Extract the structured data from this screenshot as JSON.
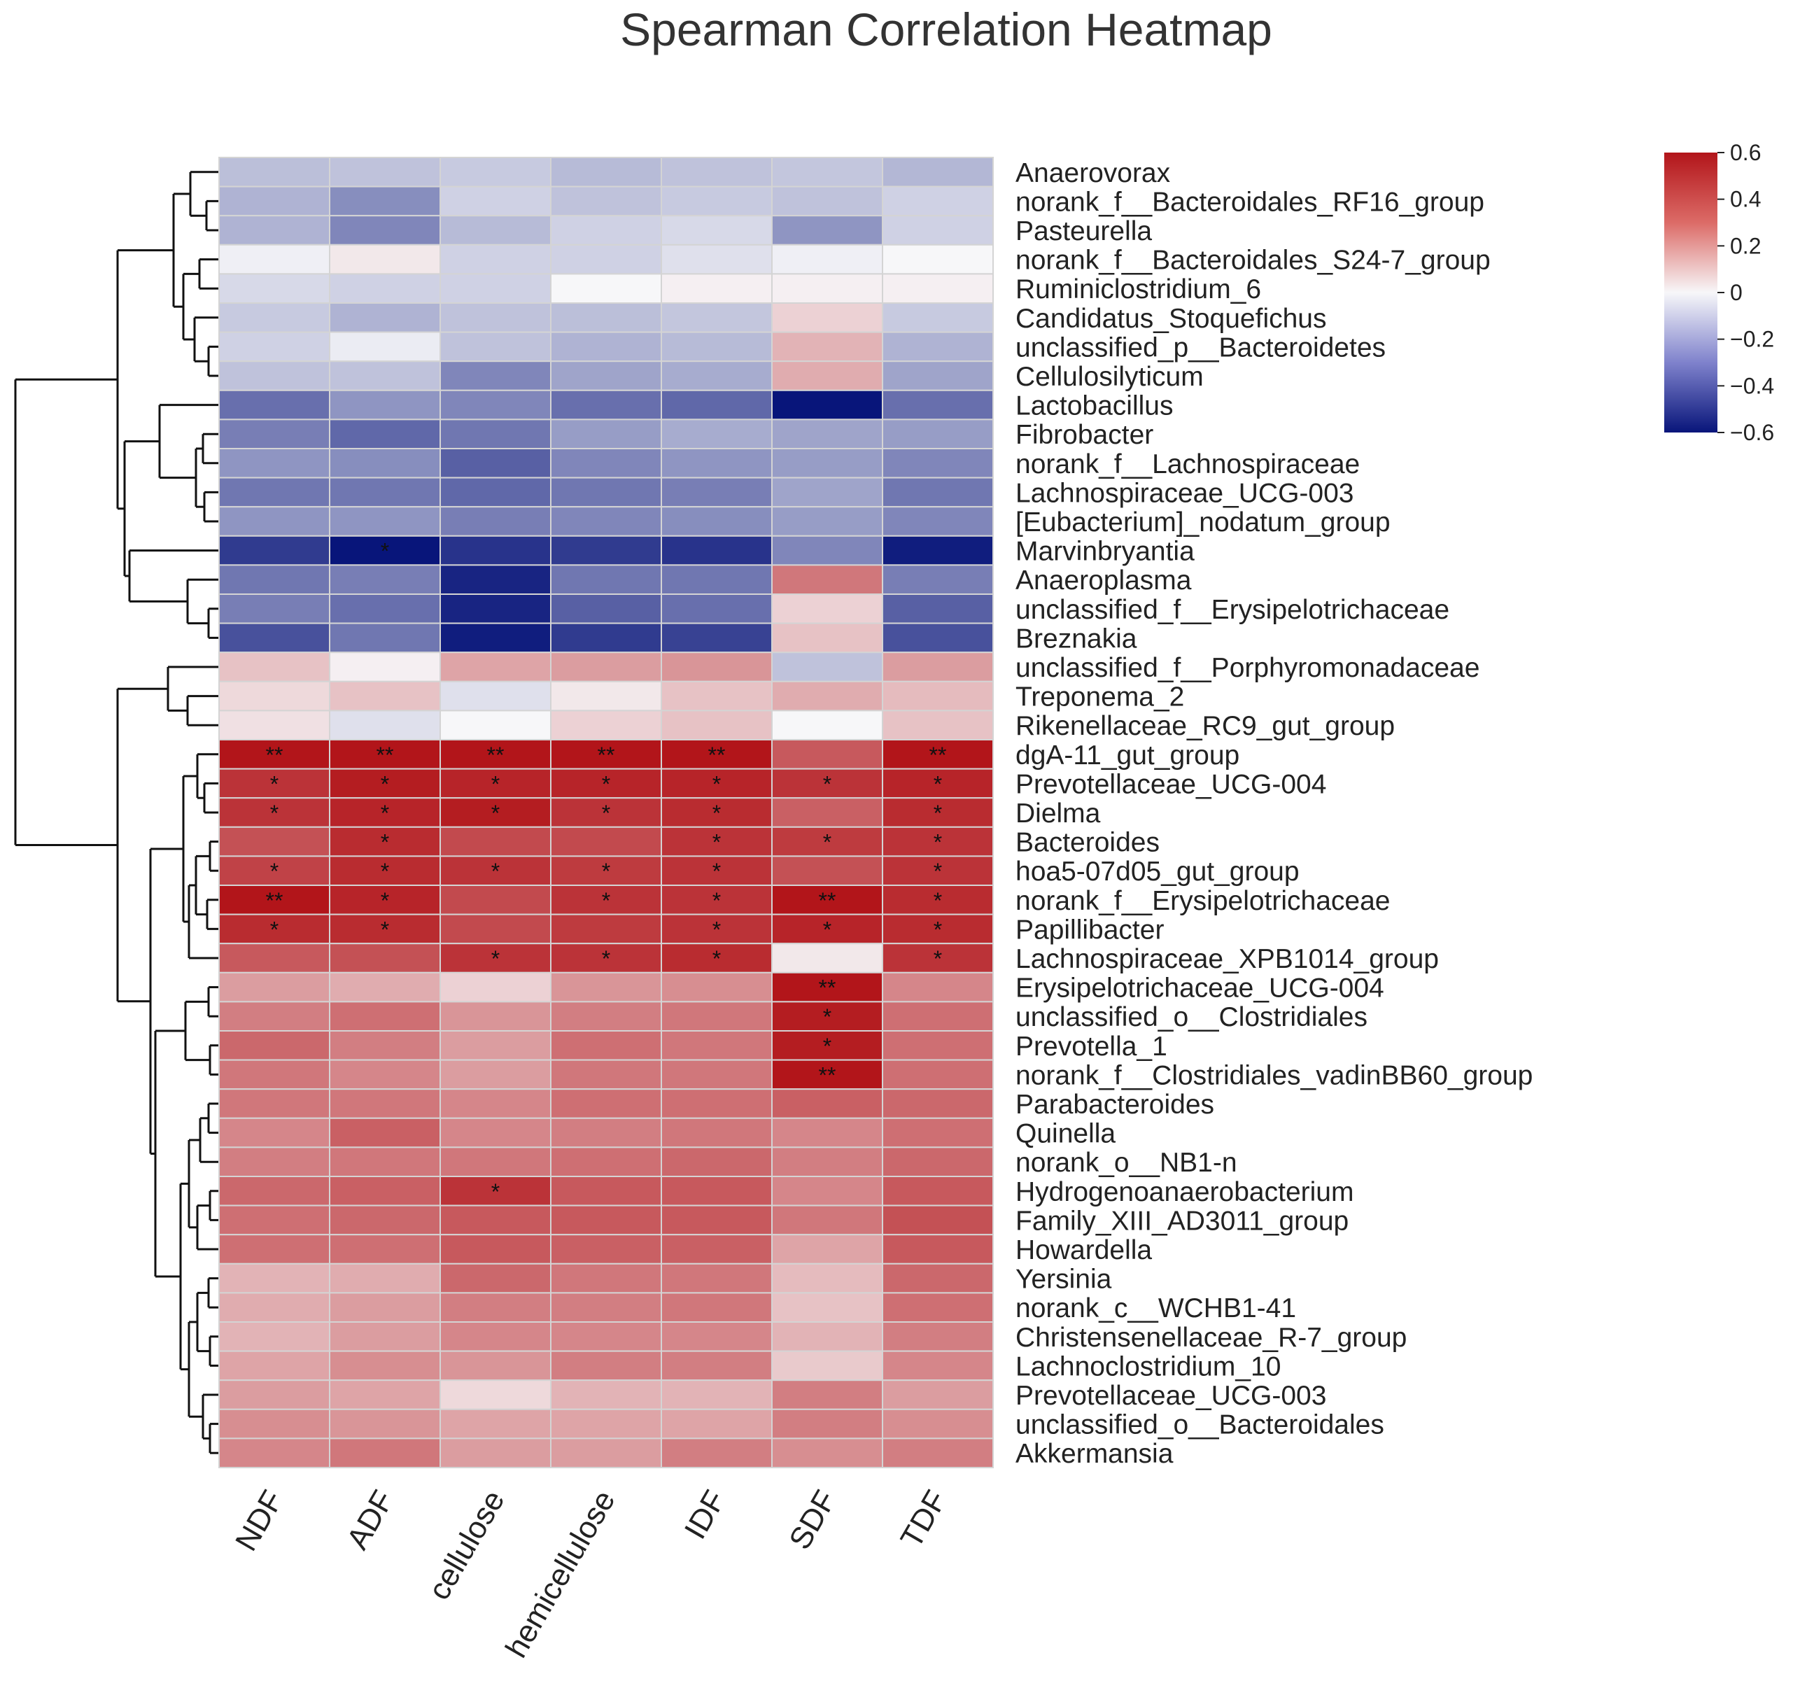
{
  "chart_data": {
    "type": "heatmap",
    "title": "Spearman Correlation Heatmap",
    "columns": [
      "NDF",
      "ADF",
      "cellulose",
      "hemicellulose",
      "IDF",
      "SDF",
      "TDF"
    ],
    "rows": [
      "Anaerovorax",
      "norank_f__Bacteroidales_RF16_group",
      "Pasteurella",
      "norank_f__Bacteroidales_S24-7_group",
      "Ruminiclostridium_6",
      "Candidatus_Stoquefichus",
      "unclassified_p__Bacteroidetes",
      "Cellulosilyticum",
      "Lactobacillus",
      "Fibrobacter",
      "norank_f__Lachnospiraceae",
      "Lachnospiraceae_UCG-003",
      "[Eubacterium]_nodatum_group",
      "Marvinbryantia",
      "Anaeroplasma",
      "unclassified_f__Erysipelotrichaceae",
      "Breznakia",
      "unclassified_f__Porphyromonadaceae",
      "Treponema_2",
      "Rikenellaceae_RC9_gut_group",
      "dgA-11_gut_group",
      "Prevotellaceae_UCG-004",
      "Dielma",
      "Bacteroides",
      "hoa5-07d05_gut_group",
      "norank_f__Erysipelotrichaceae",
      "Papillibacter",
      "Lachnospiraceae_XPB1014_group",
      "Erysipelotrichaceae_UCG-004",
      "unclassified_o__Clostridiales",
      "Prevotella_1",
      "norank_f__Clostridiales_vadinBB60_group",
      "Parabacteroides",
      "Quinella",
      "norank_o__NB1-n",
      "Hydrogenoanaerobacterium",
      "Family_XIII_AD3011_group",
      "Howardella",
      "Yersinia",
      "norank_c__WCHB1-41",
      "Christensenellaceae_R-7_group",
      "Lachnoclostridium_10",
      "Prevotellaceae_UCG-003",
      "unclassified_o__Bacteroidales",
      "Akkermansia"
    ],
    "values": [
      [
        -0.15,
        -0.14,
        -0.12,
        -0.16,
        -0.14,
        -0.13,
        -0.17
      ],
      [
        -0.18,
        -0.28,
        -0.1,
        -0.14,
        -0.12,
        -0.14,
        -0.1
      ],
      [
        -0.18,
        -0.3,
        -0.16,
        -0.1,
        -0.08,
        -0.26,
        -0.1
      ],
      [
        -0.02,
        0.04,
        -0.1,
        -0.1,
        -0.06,
        -0.02,
        0.0
      ],
      [
        -0.08,
        -0.1,
        -0.1,
        0.0,
        0.02,
        0.02,
        0.02
      ],
      [
        -0.12,
        -0.18,
        -0.14,
        -0.15,
        -0.13,
        0.1,
        -0.12
      ],
      [
        -0.1,
        -0.03,
        -0.14,
        -0.18,
        -0.16,
        0.18,
        -0.18
      ],
      [
        -0.14,
        -0.14,
        -0.3,
        -0.22,
        -0.2,
        0.2,
        -0.22
      ],
      [
        -0.36,
        -0.26,
        -0.3,
        -0.36,
        -0.38,
        -0.62,
        -0.36
      ],
      [
        -0.32,
        -0.38,
        -0.34,
        -0.24,
        -0.2,
        -0.22,
        -0.24
      ],
      [
        -0.26,
        -0.28,
        -0.4,
        -0.3,
        -0.26,
        -0.24,
        -0.3
      ],
      [
        -0.34,
        -0.34,
        -0.38,
        -0.34,
        -0.32,
        -0.22,
        -0.34
      ],
      [
        -0.26,
        -0.26,
        -0.32,
        -0.3,
        -0.28,
        -0.24,
        -0.3
      ],
      [
        -0.5,
        -0.66,
        -0.52,
        -0.5,
        -0.52,
        -0.3,
        -0.58
      ],
      [
        -0.34,
        -0.32,
        -0.56,
        -0.34,
        -0.34,
        0.34,
        -0.32
      ],
      [
        -0.32,
        -0.36,
        -0.56,
        -0.4,
        -0.36,
        0.1,
        -0.4
      ],
      [
        -0.44,
        -0.34,
        -0.58,
        -0.5,
        -0.48,
        0.14,
        -0.44
      ],
      [
        0.14,
        0.02,
        0.22,
        0.24,
        0.26,
        -0.14,
        0.24
      ],
      [
        0.08,
        0.14,
        -0.06,
        0.04,
        0.14,
        0.2,
        0.16
      ],
      [
        0.06,
        -0.06,
        0.0,
        0.1,
        0.14,
        0.0,
        0.14
      ],
      [
        0.66,
        0.64,
        0.68,
        0.64,
        0.62,
        0.42,
        0.66
      ],
      [
        0.52,
        0.58,
        0.56,
        0.56,
        0.56,
        0.52,
        0.56
      ],
      [
        0.52,
        0.56,
        0.58,
        0.52,
        0.54,
        0.4,
        0.54
      ],
      [
        0.44,
        0.54,
        0.46,
        0.46,
        0.52,
        0.5,
        0.52
      ],
      [
        0.48,
        0.54,
        0.52,
        0.5,
        0.52,
        0.44,
        0.52
      ],
      [
        0.6,
        0.56,
        0.46,
        0.52,
        0.52,
        0.66,
        0.54
      ],
      [
        0.54,
        0.54,
        0.46,
        0.5,
        0.52,
        0.56,
        0.54
      ],
      [
        0.42,
        0.44,
        0.52,
        0.52,
        0.54,
        0.04,
        0.52
      ],
      [
        0.24,
        0.2,
        0.1,
        0.26,
        0.28,
        0.66,
        0.3
      ],
      [
        0.32,
        0.36,
        0.26,
        0.32,
        0.34,
        0.58,
        0.36
      ],
      [
        0.38,
        0.32,
        0.24,
        0.36,
        0.34,
        0.58,
        0.36
      ],
      [
        0.34,
        0.3,
        0.24,
        0.34,
        0.34,
        0.66,
        0.36
      ],
      [
        0.34,
        0.34,
        0.3,
        0.36,
        0.36,
        0.4,
        0.38
      ],
      [
        0.3,
        0.4,
        0.3,
        0.32,
        0.34,
        0.3,
        0.36
      ],
      [
        0.32,
        0.34,
        0.34,
        0.36,
        0.38,
        0.32,
        0.38
      ],
      [
        0.38,
        0.4,
        0.52,
        0.42,
        0.42,
        0.3,
        0.42
      ],
      [
        0.36,
        0.38,
        0.42,
        0.42,
        0.42,
        0.34,
        0.44
      ],
      [
        0.36,
        0.36,
        0.42,
        0.4,
        0.4,
        0.22,
        0.42
      ],
      [
        0.18,
        0.2,
        0.38,
        0.34,
        0.34,
        0.16,
        0.38
      ],
      [
        0.2,
        0.24,
        0.32,
        0.32,
        0.34,
        0.14,
        0.36
      ],
      [
        0.18,
        0.24,
        0.3,
        0.3,
        0.3,
        0.18,
        0.32
      ],
      [
        0.22,
        0.28,
        0.26,
        0.32,
        0.32,
        0.12,
        0.3
      ],
      [
        0.24,
        0.22,
        0.08,
        0.18,
        0.18,
        0.32,
        0.24
      ],
      [
        0.28,
        0.26,
        0.22,
        0.22,
        0.22,
        0.32,
        0.28
      ],
      [
        0.3,
        0.34,
        0.24,
        0.24,
        0.32,
        0.28,
        0.32
      ]
    ],
    "significance": [
      [
        "",
        "",
        "",
        "",
        "",
        "",
        ""
      ],
      [
        "",
        "",
        "",
        "",
        "",
        "",
        ""
      ],
      [
        "",
        "",
        "",
        "",
        "",
        "",
        ""
      ],
      [
        "",
        "",
        "",
        "",
        "",
        "",
        ""
      ],
      [
        "",
        "",
        "",
        "",
        "",
        "",
        ""
      ],
      [
        "",
        "",
        "",
        "",
        "",
        "",
        ""
      ],
      [
        "",
        "",
        "",
        "",
        "",
        "",
        ""
      ],
      [
        "",
        "",
        "",
        "",
        "",
        "",
        ""
      ],
      [
        "",
        "",
        "",
        "",
        "",
        "",
        ""
      ],
      [
        "",
        "",
        "",
        "",
        "",
        "",
        ""
      ],
      [
        "",
        "",
        "",
        "",
        "",
        "",
        ""
      ],
      [
        "",
        "",
        "",
        "",
        "",
        "",
        ""
      ],
      [
        "",
        "",
        "",
        "",
        "",
        "",
        ""
      ],
      [
        "",
        "*",
        "",
        "",
        "",
        "",
        ""
      ],
      [
        "",
        "",
        "",
        "",
        "",
        "",
        ""
      ],
      [
        "",
        "",
        "",
        "",
        "",
        "",
        ""
      ],
      [
        "",
        "",
        "",
        "",
        "",
        "",
        ""
      ],
      [
        "",
        "",
        "",
        "",
        "",
        "",
        ""
      ],
      [
        "",
        "",
        "",
        "",
        "",
        "",
        ""
      ],
      [
        "",
        "",
        "",
        "",
        "",
        "",
        ""
      ],
      [
        "**",
        "**",
        "**",
        "**",
        "**",
        "",
        "**"
      ],
      [
        "*",
        "*",
        "*",
        "*",
        "*",
        "*",
        "*"
      ],
      [
        "*",
        "*",
        "*",
        "*",
        "*",
        "",
        "*"
      ],
      [
        "",
        "*",
        "",
        "",
        "*",
        "*",
        "*"
      ],
      [
        "*",
        "*",
        "*",
        "*",
        "*",
        "",
        "*"
      ],
      [
        "**",
        "*",
        "",
        "*",
        "*",
        "**",
        "*"
      ],
      [
        "*",
        "*",
        "",
        "",
        "*",
        "*",
        "*"
      ],
      [
        "",
        "",
        "*",
        "*",
        "*",
        "",
        "*"
      ],
      [
        "",
        "",
        "",
        "",
        "",
        "**",
        ""
      ],
      [
        "",
        "",
        "",
        "",
        "",
        "*",
        ""
      ],
      [
        "",
        "",
        "",
        "",
        "",
        "*",
        ""
      ],
      [
        "",
        "",
        "",
        "",
        "",
        "**",
        ""
      ],
      [
        "",
        "",
        "",
        "",
        "",
        "",
        ""
      ],
      [
        "",
        "",
        "",
        "",
        "",
        "",
        ""
      ],
      [
        "",
        "",
        "",
        "",
        "",
        "",
        ""
      ],
      [
        "",
        "",
        "*",
        "",
        "",
        "",
        ""
      ],
      [
        "",
        "",
        "",
        "",
        "",
        "",
        ""
      ],
      [
        "",
        "",
        "",
        "",
        "",
        "",
        ""
      ],
      [
        "",
        "",
        "",
        "",
        "",
        "",
        ""
      ],
      [
        "",
        "",
        "",
        "",
        "",
        "",
        ""
      ],
      [
        "",
        "",
        "",
        "",
        "",
        "",
        ""
      ],
      [
        "",
        "",
        "",
        "",
        "",
        "",
        ""
      ],
      [
        "",
        "",
        "",
        "",
        "",
        "",
        ""
      ],
      [
        "",
        "",
        "",
        "",
        "",
        "",
        ""
      ],
      [
        "",
        "",
        "",
        "",
        "",
        "",
        ""
      ]
    ],
    "colorbar": {
      "min": -0.6,
      "max": 0.6,
      "ticks": [
        0.6,
        0.4,
        0.2,
        0,
        -0.2,
        -0.4,
        -0.6
      ],
      "tick_labels": [
        "0.6",
        "0.4",
        "0.2",
        "0",
        "−0.2",
        "−0.4",
        "−0.6"
      ],
      "colors": {
        "low": "#08157a",
        "mid": "#f7f7f9",
        "high": "#b2151a"
      }
    },
    "dendrogram": "hierarchical clustering of rows (genera)",
    "legend_position": "top-right"
  }
}
